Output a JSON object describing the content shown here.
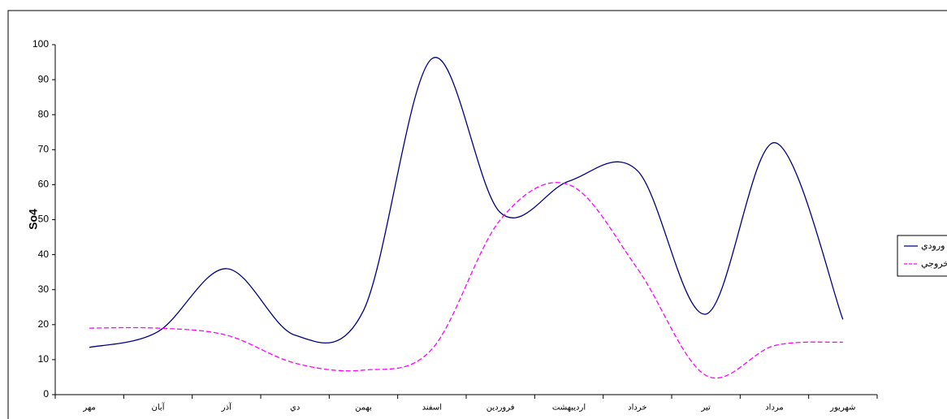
{
  "chart_data": {
    "type": "line",
    "y_label": "So4",
    "categories": [
      "مهر",
      "آبان",
      "آذر",
      "دي",
      "بهمن",
      "اسفند",
      "فروردين",
      "ارديبهشت",
      "خرداد",
      "تير",
      "مرداد",
      "شهريور"
    ],
    "series": [
      {
        "name": "ورودي",
        "color": "#000080",
        "dash": false,
        "values": [
          13.5,
          18,
          36,
          17,
          24,
          96,
          52,
          61,
          64,
          23,
          72,
          21.5
        ]
      },
      {
        "name": "خروجي",
        "color": "#ff00ff",
        "dash": true,
        "values": [
          19,
          19,
          17,
          9,
          7,
          13,
          50,
          60,
          36,
          5.5,
          14,
          15
        ]
      }
    ],
    "ylim": [
      0,
      100
    ],
    "yticks": [
      0,
      10,
      20,
      30,
      40,
      50,
      60,
      70,
      80,
      90,
      100
    ],
    "smooth": true
  }
}
